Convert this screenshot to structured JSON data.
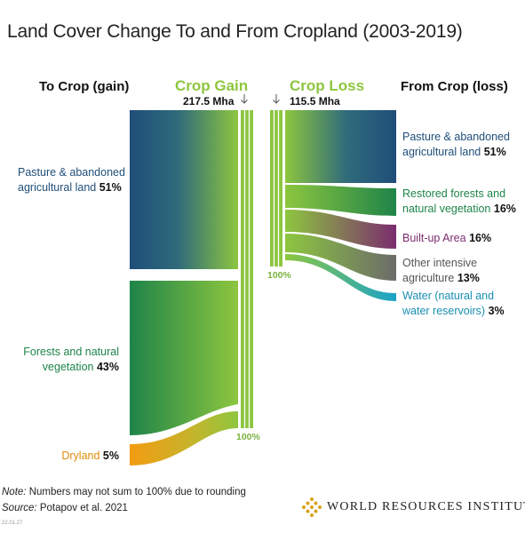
{
  "title": "Land Cover Change To and From Cropland (2003-2019)",
  "left_header": "To Crop (gain)",
  "right_header": "From Crop (loss)",
  "gain": {
    "label": "Crop Gain",
    "total": "217.5 Mha",
    "bar_pct": "100%"
  },
  "loss": {
    "label": "Crop Loss",
    "total": "115.5 Mha",
    "bar_pct": "100%"
  },
  "gain_flows": [
    {
      "name": "Pasture & abandoned",
      "name2": "agricultural land",
      "pct": "51%",
      "color": "#1f4e79"
    },
    {
      "name": "Forests and natural",
      "name2": "vegetation",
      "pct": "43%",
      "color": "#1e8449"
    },
    {
      "name": "Dryland",
      "pct": "5%",
      "color": "#f39c12"
    }
  ],
  "loss_flows": [
    {
      "name": "Pasture & abandoned",
      "name2": "agricultural land",
      "pct": "51%",
      "color": "#1f4e79"
    },
    {
      "name": "Restored forests and",
      "name2": "natural vegetation",
      "pct": "16%",
      "color": "#1e8449"
    },
    {
      "name": "Built-up Area",
      "pct": "16%",
      "color": "#7b2d6e"
    },
    {
      "name": "Other intensive",
      "name2": "agriculture",
      "pct": "13%",
      "color": "#6b6b6b"
    },
    {
      "name": "Water (natural and",
      "name2": "water reservoirs)",
      "pct": "3%",
      "color": "#1aa3c9"
    }
  ],
  "accent_green": "#8dc63f",
  "note": {
    "prefix": "Note:",
    "text": " Numbers may not sum to 100% due to rounding"
  },
  "source": {
    "prefix": "Source:",
    "text": " Potapov et al. 2021"
  },
  "stamp": "22.01.27",
  "org": "WORLD RESOURCES INSTITUTE"
}
